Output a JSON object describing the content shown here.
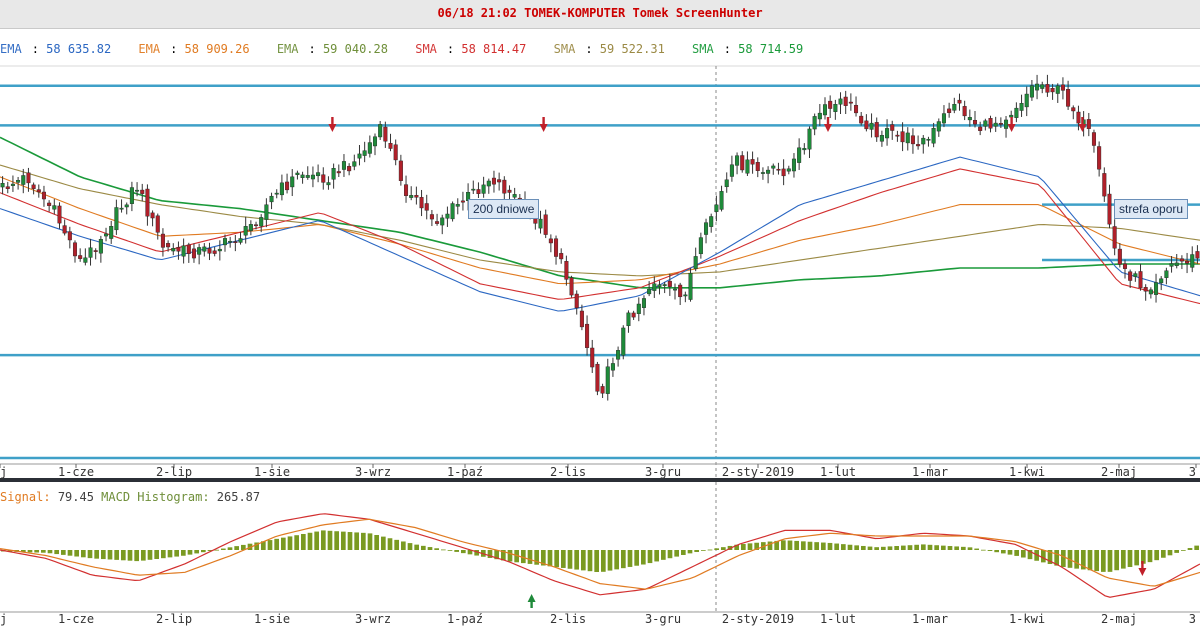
{
  "window": {
    "title": "06/18 21:02 TOMEK-KOMPUTER Tomek ScreenHunter"
  },
  "indicators": [
    {
      "name": "EMA",
      "value": "58 635.82",
      "color": "#2b67c2"
    },
    {
      "name": "EMA",
      "value": "58 909.26",
      "color": "#e07b22"
    },
    {
      "name": "EMA",
      "value": "59 040.28",
      "color": "#6f8f3a"
    },
    {
      "name": "SMA",
      "value": "58 814.47",
      "color": "#d23030"
    },
    {
      "name": "SMA",
      "value": "59 522.31",
      "color": "#9b8a45"
    },
    {
      "name": "SMA",
      "value": "58 714.59",
      "color": "#1a9a3a"
    }
  ],
  "annotations": {
    "ma200": "200 dniowe",
    "resistance": "strefa oporu"
  },
  "macd": {
    "signal_label": "Signal:",
    "signal_value": "79.45",
    "hist_label": "MACD Histogram:",
    "hist_value": "265.87"
  },
  "chart_data": [
    {
      "type": "candlestick",
      "x_tick_labels": [
        "j",
        "1-cze",
        "2-lip",
        "1-sie",
        "3-wrz",
        "1-paź",
        "2-lis",
        "3-gru",
        "2-sty-2019",
        "1-lut",
        "1-mar",
        "1-kwi",
        "2-maj",
        "3"
      ],
      "close_path": [
        0.31,
        0.28,
        0.37,
        0.5,
        0.4,
        0.3,
        0.46,
        0.47,
        0.46,
        0.42,
        0.33,
        0.27,
        0.28,
        0.24,
        0.16,
        0.33,
        0.39,
        0.34,
        0.28,
        0.34,
        0.41,
        0.57,
        0.83,
        0.64,
        0.54,
        0.59,
        0.39,
        0.24,
        0.27,
        0.26,
        0.12,
        0.09,
        0.16,
        0.18,
        0.19,
        0.09,
        0.16,
        0.12,
        0.04,
        0.07,
        0.18,
        0.5,
        0.56,
        0.5,
        0.48
      ],
      "horizontal_levels": [
        0.05,
        0.15,
        0.73,
        0.99
      ],
      "resistance_zone": [
        0.35,
        0.49
      ],
      "moving_averages": [
        {
          "color": "#1a9a3a",
          "path": [
            0.18,
            0.28,
            0.34,
            0.36,
            0.39,
            0.42,
            0.47,
            0.53,
            0.56,
            0.56,
            0.54,
            0.53,
            0.51,
            0.51,
            0.5,
            0.5
          ]
        },
        {
          "color": "#9b8a45",
          "path": [
            0.25,
            0.31,
            0.35,
            0.38,
            0.4,
            0.44,
            0.49,
            0.52,
            0.53,
            0.52,
            0.49,
            0.46,
            0.43,
            0.4,
            0.41,
            0.44
          ]
        },
        {
          "color": "#e07b22",
          "path": [
            0.28,
            0.36,
            0.43,
            0.42,
            0.4,
            0.45,
            0.51,
            0.55,
            0.54,
            0.5,
            0.44,
            0.4,
            0.35,
            0.35,
            0.45,
            0.5
          ]
        },
        {
          "color": "#d23030",
          "path": [
            0.32,
            0.4,
            0.47,
            0.42,
            0.37,
            0.45,
            0.55,
            0.59,
            0.56,
            0.48,
            0.39,
            0.32,
            0.26,
            0.3,
            0.55,
            0.6
          ]
        },
        {
          "color": "#2b67c2",
          "path": [
            0.36,
            0.43,
            0.49,
            0.44,
            0.39,
            0.48,
            0.57,
            0.62,
            0.58,
            0.47,
            0.35,
            0.29,
            0.23,
            0.28,
            0.52,
            0.58
          ]
        }
      ],
      "signal_arrows": [
        {
          "x": 0.277,
          "kind": "down"
        },
        {
          "x": 0.453,
          "kind": "down"
        },
        {
          "x": 0.69,
          "kind": "down"
        },
        {
          "x": 0.843,
          "kind": "down"
        },
        {
          "x": 0.902,
          "kind": "down"
        }
      ]
    },
    {
      "type": "bar",
      "name": "MACD",
      "histogram_path": [
        -0.05,
        -0.1,
        -0.3,
        -0.4,
        -0.2,
        0.1,
        0.4,
        0.7,
        0.6,
        0.2,
        -0.1,
        -0.4,
        -0.6,
        -0.8,
        -0.5,
        -0.1,
        0.2,
        0.35,
        0.25,
        0.1,
        0.2,
        0.1,
        -0.2,
        -0.6,
        -0.8,
        -0.4,
        0.2
      ],
      "macd_path": [
        0.0,
        -0.3,
        -0.9,
        -1.1,
        -0.5,
        0.3,
        1.0,
        1.3,
        1.1,
        0.6,
        0.1,
        -0.4,
        -1.1,
        -1.6,
        -1.4,
        -0.6,
        0.2,
        0.7,
        0.7,
        0.4,
        0.6,
        0.5,
        0.2,
        -0.6,
        -1.7,
        -1.4,
        -0.5
      ],
      "signal_path": [
        0.05,
        -0.2,
        -0.6,
        -0.9,
        -0.8,
        -0.2,
        0.5,
        0.9,
        1.1,
        0.8,
        0.3,
        -0.1,
        -0.6,
        -1.2,
        -1.4,
        -1.0,
        -0.2,
        0.4,
        0.6,
        0.5,
        0.5,
        0.5,
        0.3,
        -0.2,
        -1.0,
        -1.3,
        -0.8
      ],
      "signal_arrows": [
        {
          "x": 0.443,
          "kind": "up"
        },
        {
          "x": 0.952,
          "kind": "down"
        }
      ]
    }
  ]
}
